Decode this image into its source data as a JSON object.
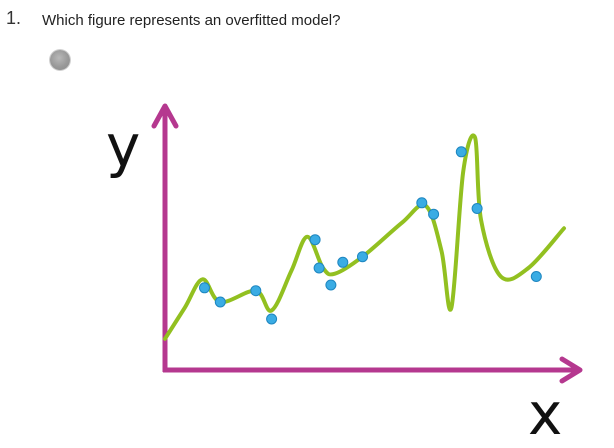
{
  "question": {
    "number": "1.",
    "text": "Which figure represents an overfitted model?"
  },
  "option": {
    "state": "unselected"
  },
  "chart_data": {
    "type": "scatter",
    "xlabel": "x",
    "ylabel": "y",
    "grid": false,
    "colors": {
      "axis": "#b5388f",
      "curve": "#92c020",
      "points": "#3aace4"
    },
    "points": [
      {
        "x": 1.0,
        "y": 2.9
      },
      {
        "x": 1.4,
        "y": 2.4
      },
      {
        "x": 2.3,
        "y": 2.8
      },
      {
        "x": 2.7,
        "y": 1.8
      },
      {
        "x": 3.8,
        "y": 4.6
      },
      {
        "x": 3.9,
        "y": 3.6
      },
      {
        "x": 4.2,
        "y": 3.0
      },
      {
        "x": 4.5,
        "y": 3.8
      },
      {
        "x": 5.0,
        "y": 4.0
      },
      {
        "x": 6.5,
        "y": 5.9
      },
      {
        "x": 6.8,
        "y": 5.5
      },
      {
        "x": 7.5,
        "y": 7.7
      },
      {
        "x": 7.9,
        "y": 5.7
      },
      {
        "x": 9.4,
        "y": 3.3
      }
    ],
    "fit_curve": [
      {
        "x": 0.0,
        "y": 1.1
      },
      {
        "x": 0.5,
        "y": 2.2
      },
      {
        "x": 0.95,
        "y": 3.2
      },
      {
        "x": 1.4,
        "y": 2.4
      },
      {
        "x": 2.3,
        "y": 2.8
      },
      {
        "x": 2.7,
        "y": 2.1
      },
      {
        "x": 3.2,
        "y": 3.5
      },
      {
        "x": 3.6,
        "y": 4.7
      },
      {
        "x": 4.0,
        "y": 3.6
      },
      {
        "x": 4.3,
        "y": 3.4
      },
      {
        "x": 5.0,
        "y": 4.0
      },
      {
        "x": 6.0,
        "y": 5.2
      },
      {
        "x": 6.6,
        "y": 5.8
      },
      {
        "x": 7.0,
        "y": 4.2
      },
      {
        "x": 7.25,
        "y": 2.2
      },
      {
        "x": 7.55,
        "y": 7.0
      },
      {
        "x": 7.85,
        "y": 8.2
      },
      {
        "x": 8.0,
        "y": 5.3
      },
      {
        "x": 8.5,
        "y": 3.3
      },
      {
        "x": 9.2,
        "y": 3.6
      },
      {
        "x": 10.1,
        "y": 5.0
      }
    ],
    "xlim": [
      0,
      10
    ],
    "ylim": [
      0,
      9
    ]
  }
}
